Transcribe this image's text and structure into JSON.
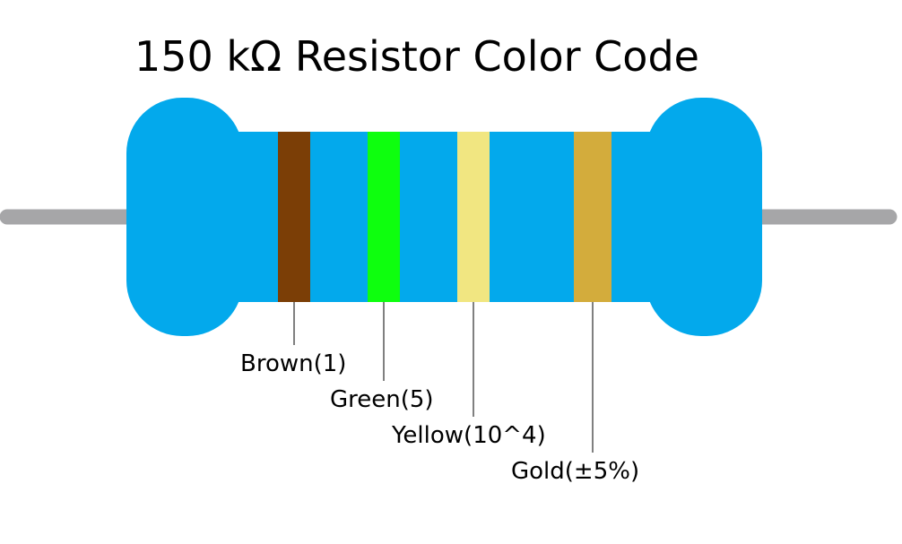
{
  "title": "150 kΩ Resistor Color Code",
  "colors": {
    "body": "#03a9ec",
    "lead": "#a6a6a8",
    "leader_line": "#000000"
  },
  "bands": [
    {
      "label": "Brown(1)",
      "color_name": "brown",
      "color": "#7b3e06"
    },
    {
      "label": "Green(5)",
      "color_name": "green",
      "color": "#0eff0e"
    },
    {
      "label": "Yellow(10^4)",
      "color_name": "yellow",
      "color": "#f1e681"
    },
    {
      "label": "Gold(±5%)",
      "color_name": "gold",
      "color": "#d3ac3c"
    }
  ]
}
